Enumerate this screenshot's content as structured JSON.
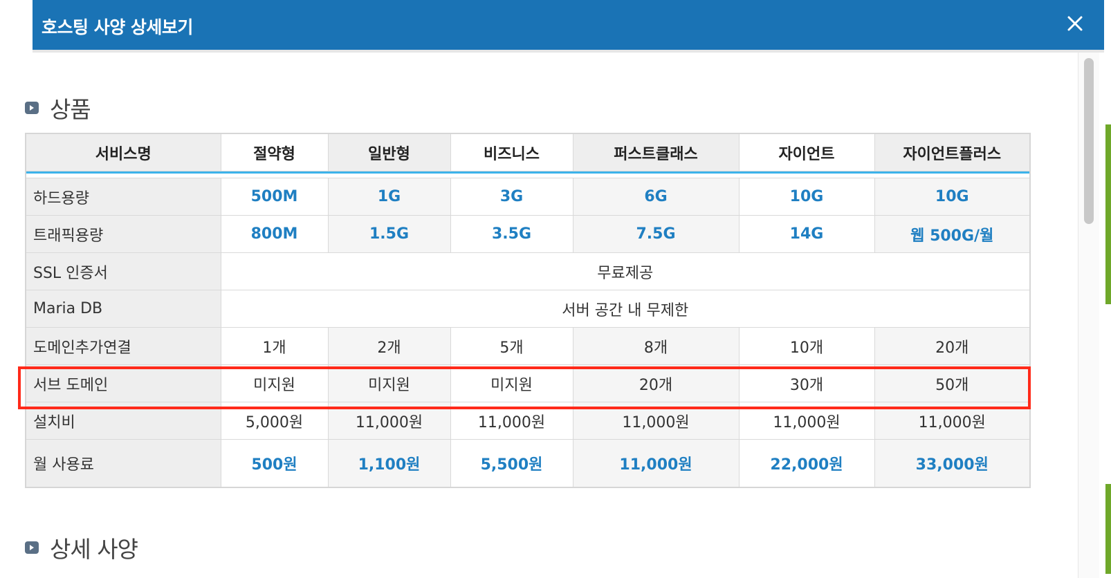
{
  "modal": {
    "title": "호스팅 사양 상세보기",
    "close_icon": "close-icon"
  },
  "sections": {
    "product": "상품",
    "detail": "상세 사양"
  },
  "table": {
    "headers": [
      "서비스명",
      "절약형",
      "일반형",
      "비즈니스",
      "퍼스트클래스",
      "자이언트",
      "자이언트플러스"
    ],
    "rows": {
      "hdd": {
        "label": "하드용량",
        "values": [
          "500M",
          "1G",
          "3G",
          "6G",
          "10G",
          "10G"
        ]
      },
      "traffic": {
        "label": "트래픽용량",
        "values": [
          "800M",
          "1.5G",
          "3.5G",
          "7.5G",
          "14G",
          "웹 500G/월"
        ]
      },
      "ssl": {
        "label": "SSL 인증서",
        "value": "무료제공"
      },
      "mariadb": {
        "label": "Maria DB",
        "value": "서버 공간 내 무제한"
      },
      "domain_add": {
        "label": "도메인추가연결",
        "values": [
          "1개",
          "2개",
          "5개",
          "8개",
          "10개",
          "20개"
        ]
      },
      "subdomain": {
        "label": "서브 도메인",
        "values": [
          "미지원",
          "미지원",
          "미지원",
          "20개",
          "30개",
          "50개"
        ]
      },
      "setup": {
        "label": "설치비",
        "values": [
          "5,000원",
          "11,000원",
          "11,000원",
          "11,000원",
          "11,000원",
          "11,000원"
        ]
      },
      "monthly": {
        "label": "월 사용료",
        "values": [
          "500원",
          "1,100원",
          "5,500원",
          "11,000원",
          "22,000원",
          "33,000원"
        ]
      }
    }
  },
  "colors": {
    "header_bar": "#1a73b5",
    "accent_green": "#7ab51d",
    "value_blue": "#1f7fc2",
    "highlight_red": "#ff2a1a",
    "header_line": "#3db3ea"
  }
}
